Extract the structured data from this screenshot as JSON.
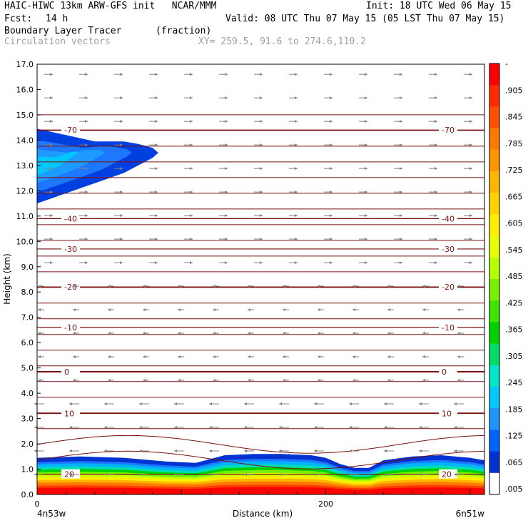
{
  "header": {
    "title_left": "HAIC-HIWC 13km ARW-GFS init   NCAR/MMM",
    "init": "Init: 18 UTC Wed 06 May 15",
    "fcst_label": "Fcst:",
    "fcst_value": "14 h",
    "valid": "Valid: 08 UTC Thu 07 May 15 (05 LST Thu 07 May 15)",
    "field1": "Boundary Layer Tracer",
    "field1_units": "(fraction)",
    "field2": "Circulation vectors",
    "xy": "XY= 259.5, 91.6 to 274.6,110.2"
  },
  "chart_data": {
    "type": "heatmap",
    "xlabel": "Distance (km)",
    "ylabel": "Height (km)",
    "xlim": [
      0,
      310
    ],
    "ylim": [
      0,
      17
    ],
    "y_ticks": [
      "0.0",
      "1.0",
      "2.0",
      "3.0",
      "4.0",
      "5.0",
      "6.0",
      "7.0",
      "8.0",
      "9.0",
      "10.0",
      "11.0",
      "12.0",
      "13.0",
      "14.0",
      "15.0",
      "16.0",
      "17.0"
    ],
    "x_ticks": [
      {
        "value": 0,
        "label": "0"
      },
      {
        "value": 200,
        "label": "200"
      }
    ],
    "x_end_labels": {
      "left": "4n53w",
      "right": "6n51w"
    },
    "colorbar": {
      "labels": [
        "-",
        ".905",
        ".845",
        ".785",
        ".725",
        ".665",
        ".605",
        ".545",
        ".485",
        ".425",
        ".365",
        ".305",
        ".245",
        ".185",
        ".125",
        ".065",
        ".005"
      ],
      "colors": [
        "#ff0000",
        "#ff2a00",
        "#ff5000",
        "#ff7800",
        "#ff9600",
        "#ffb400",
        "#ffd200",
        "#ffee00",
        "#e8ff00",
        "#b4ff00",
        "#78f000",
        "#3ce600",
        "#00d200",
        "#00dc64",
        "#00e6c8",
        "#00c8ff",
        "#1e96ff",
        "#0064ff",
        "#0032d2",
        "#ffffff"
      ]
    },
    "tracer_boundary_layer": {
      "x": [
        0,
        30,
        60,
        90,
        110,
        130,
        150,
        170,
        190,
        200,
        210,
        220,
        230,
        240,
        260,
        280,
        300,
        310
      ],
      "top_km": [
        1.45,
        1.5,
        1.45,
        1.3,
        1.25,
        1.55,
        1.6,
        1.6,
        1.55,
        1.45,
        1.2,
        1.05,
        1.05,
        1.35,
        1.5,
        1.55,
        1.45,
        1.35
      ]
    },
    "tracer_aloft_plume": {
      "x": [
        0,
        20,
        40,
        60,
        70,
        80,
        84
      ],
      "top_km": [
        14.45,
        14.2,
        13.95,
        13.95,
        13.85,
        13.7,
        13.5
      ],
      "bottom_km": [
        11.5,
        11.9,
        12.3,
        12.7,
        13.0,
        13.3,
        13.5
      ]
    },
    "temperature_contours": [
      {
        "label": "-70",
        "height_km": 14.4
      },
      {
        "label": "-40",
        "height_km": 10.9
      },
      {
        "label": "-30",
        "height_km": 9.7
      },
      {
        "label": "-20",
        "height_km": 8.2
      },
      {
        "label": "-10",
        "height_km": 6.6
      },
      {
        "label": "0",
        "height_km": 4.85
      },
      {
        "label": "10",
        "height_km": 3.2
      },
      {
        "label": "20",
        "height_km": 0.8
      }
    ]
  }
}
